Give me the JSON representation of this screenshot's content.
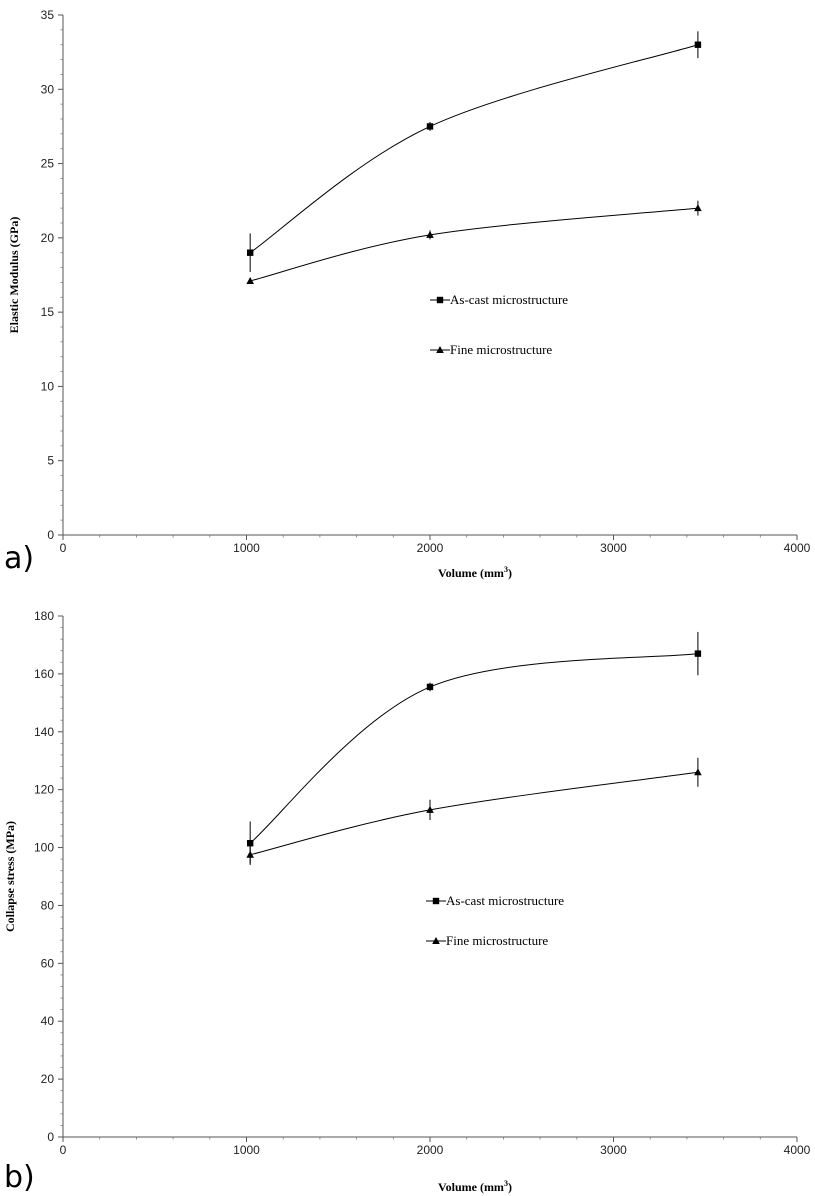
{
  "chart_data": [
    {
      "type": "line",
      "panel_label": "a)",
      "xlabel": "Volume (mm",
      "xlabel_sup": "3",
      "xlabel_close": ")",
      "ylabel": "Elastic Modulus (GPa)",
      "xlim": [
        0,
        4000
      ],
      "ylim": [
        0,
        35
      ],
      "xticks": [
        0,
        1000,
        2000,
        3000,
        4000
      ],
      "yticks": [
        0,
        5,
        10,
        15,
        20,
        25,
        30,
        35
      ],
      "grid": false,
      "legend_position": "center",
      "series": [
        {
          "name": "As-cast microstructure",
          "marker": "square",
          "x": [
            1020,
            2000,
            3460
          ],
          "y": [
            19.0,
            27.5,
            33.0
          ],
          "err": [
            1.3,
            0.3,
            0.9
          ]
        },
        {
          "name": "Fine microstructure",
          "marker": "triangle",
          "x": [
            1020,
            2000,
            3460
          ],
          "y": [
            17.1,
            20.2,
            22.0
          ],
          "err": [
            0.2,
            0.3,
            0.5
          ]
        }
      ]
    },
    {
      "type": "line",
      "panel_label": "b)",
      "xlabel": "Volume (mm",
      "xlabel_sup": "3",
      "xlabel_close": ")",
      "ylabel": "Collapse stress (MPa)",
      "xlim": [
        0,
        4000
      ],
      "ylim": [
        0,
        180
      ],
      "xticks": [
        0,
        1000,
        2000,
        3000,
        4000
      ],
      "yticks": [
        0,
        20,
        40,
        60,
        80,
        100,
        120,
        140,
        160,
        180
      ],
      "grid": false,
      "legend_position": "center",
      "series": [
        {
          "name": "As-cast microstructure",
          "marker": "square",
          "x": [
            1020,
            2000,
            3460
          ],
          "y": [
            101.5,
            155.5,
            167.0
          ],
          "err": [
            7.5,
            1.5,
            7.5
          ]
        },
        {
          "name": "Fine microstructure",
          "marker": "triangle",
          "x": [
            1020,
            2000,
            3460
          ],
          "y": [
            97.5,
            113.0,
            126.0
          ],
          "err": [
            3.0,
            3.5,
            5.0
          ]
        }
      ]
    }
  ]
}
